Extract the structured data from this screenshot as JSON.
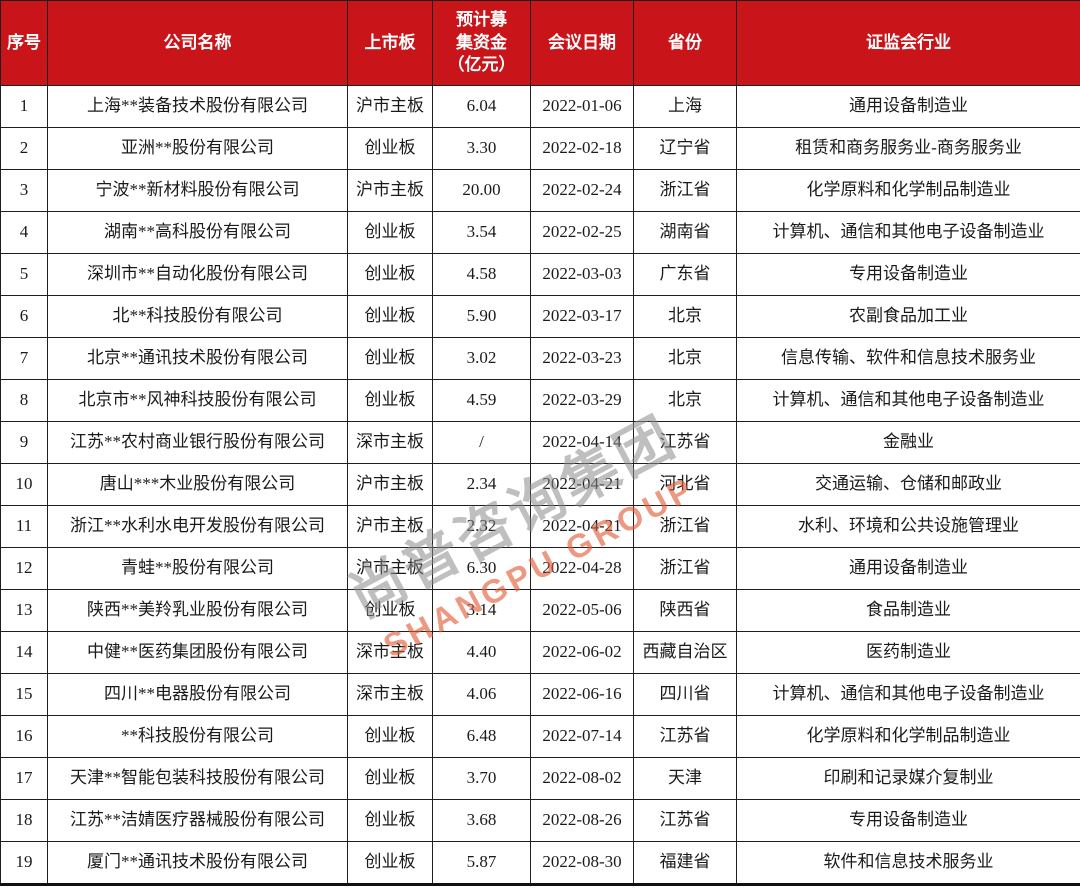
{
  "colors": {
    "header_bg": "#C9141A",
    "header_text": "#FFFFFF",
    "grid_border": "#1F1F1F",
    "body_text": "#1A1A1A",
    "watermark_gray": "#8A8A8A",
    "watermark_orange": "#E25B35"
  },
  "watermark": {
    "cn": "尚普咨询集团",
    "en": "SHANGPU GROUP"
  },
  "table": {
    "columns": [
      {
        "key": "index",
        "label": "序号"
      },
      {
        "key": "company",
        "label": "公司名称"
      },
      {
        "key": "board",
        "label": "上市板"
      },
      {
        "key": "funds",
        "label": "预计募\n集资金\n（亿元）"
      },
      {
        "key": "date",
        "label": "会议日期"
      },
      {
        "key": "province",
        "label": "省份"
      },
      {
        "key": "industry",
        "label": "证监会行业"
      }
    ],
    "rows": [
      [
        "1",
        "上海**装备技术股份有限公司",
        "沪市主板",
        "6.04",
        "2022-01-06",
        "上海",
        "通用设备制造业"
      ],
      [
        "2",
        "亚洲**股份有限公司",
        "创业板",
        "3.30",
        "2022-02-18",
        "辽宁省",
        "租赁和商务服务业-商务服务业"
      ],
      [
        "3",
        "宁波**新材料股份有限公司",
        "沪市主板",
        "20.00",
        "2022-02-24",
        "浙江省",
        "化学原料和化学制品制造业"
      ],
      [
        "4",
        "湖南**高科股份有限公司",
        "创业板",
        "3.54",
        "2022-02-25",
        "湖南省",
        "计算机、通信和其他电子设备制造业"
      ],
      [
        "5",
        "深圳市**自动化股份有限公司",
        "创业板",
        "4.58",
        "2022-03-03",
        "广东省",
        "专用设备制造业"
      ],
      [
        "6",
        "北**科技股份有限公司",
        "创业板",
        "5.90",
        "2022-03-17",
        "北京",
        "农副食品加工业"
      ],
      [
        "7",
        "北京**通讯技术股份有限公司",
        "创业板",
        "3.02",
        "2022-03-23",
        "北京",
        "信息传输、软件和信息技术服务业"
      ],
      [
        "8",
        "北京市**风神科技股份有限公司",
        "创业板",
        "4.59",
        "2022-03-29",
        "北京",
        "计算机、通信和其他电子设备制造业"
      ],
      [
        "9",
        "江苏**农村商业银行股份有限公司",
        "深市主板",
        "/",
        "2022-04-14",
        "江苏省",
        "金融业"
      ],
      [
        "10",
        "唐山***木业股份有限公司",
        "沪市主板",
        "2.34",
        "2022-04-21",
        "河北省",
        "交通运输、仓储和邮政业"
      ],
      [
        "11",
        "浙江**水利水电开发股份有限公司",
        "沪市主板",
        "2.32",
        "2022-04-21",
        "浙江省",
        "水利、环境和公共设施管理业"
      ],
      [
        "12",
        "青蛙**股份有限公司",
        "沪市主板",
        "6.30",
        "2022-04-28",
        "浙江省",
        "通用设备制造业"
      ],
      [
        "13",
        "陕西**美羚乳业股份有限公司",
        "创业板",
        "3.14",
        "2022-05-06",
        "陕西省",
        "食品制造业"
      ],
      [
        "14",
        "中健**医药集团股份有限公司",
        "深市主板",
        "4.40",
        "2022-06-02",
        "西藏自治区",
        "医药制造业"
      ],
      [
        "15",
        "四川**电器股份有限公司",
        "深市主板",
        "4.06",
        "2022-06-16",
        "四川省",
        "计算机、通信和其他电子设备制造业"
      ],
      [
        "16",
        "**科技股份有限公司",
        "创业板",
        "6.48",
        "2022-07-14",
        "江苏省",
        "化学原料和化学制品制造业"
      ],
      [
        "17",
        "天津**智能包装科技股份有限公司",
        "创业板",
        "3.70",
        "2022-08-02",
        "天津",
        "印刷和记录媒介复制业"
      ],
      [
        "18",
        "江苏**洁婧医疗器械股份有限公司",
        "创业板",
        "3.68",
        "2022-08-26",
        "江苏省",
        "专用设备制造业"
      ],
      [
        "19",
        "厦门**通讯技术股份有限公司",
        "创业板",
        "5.87",
        "2022-08-30",
        "福建省",
        "软件和信息技术服务业"
      ]
    ]
  }
}
